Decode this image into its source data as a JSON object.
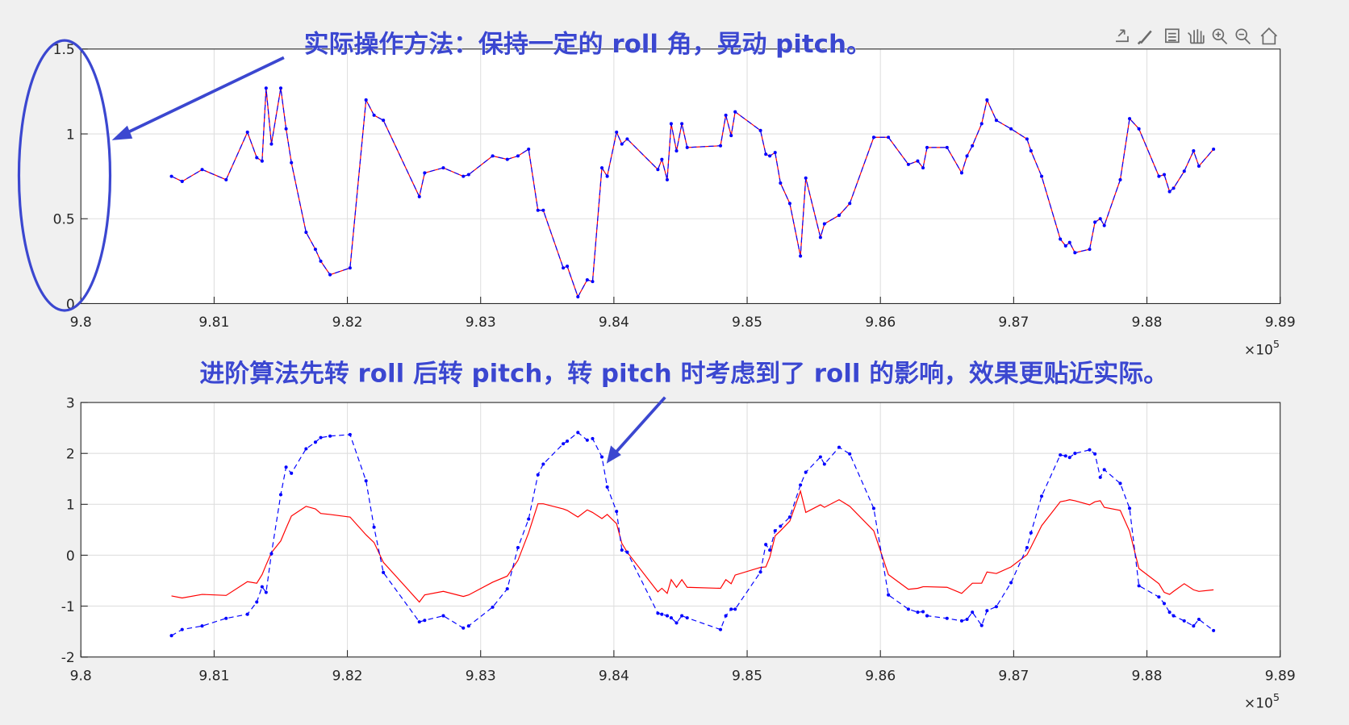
{
  "chart_data": [
    {
      "type": "line",
      "annotations": [
        "实际操作方法：保持一定的 roll 角，晃动 pitch。"
      ],
      "x_exponent_label": "×10",
      "x_exponent": "5",
      "xlim": [
        9.8,
        9.89
      ],
      "xticks": [
        9.8,
        9.81,
        9.82,
        9.83,
        9.84,
        9.85,
        9.86,
        9.87,
        9.88,
        9.89
      ],
      "ylim": [
        0,
        1.5
      ],
      "yticks": [
        0,
        0.5,
        1,
        1.5
      ],
      "grid": true,
      "x": [
        9.8068,
        9.8076,
        9.8091,
        9.8109,
        9.8125,
        9.8132,
        9.8136,
        9.8139,
        9.8143,
        9.815,
        9.8154,
        9.8158,
        9.8169,
        9.8176,
        9.818,
        9.8187,
        9.8202,
        9.8214,
        9.822,
        9.8227,
        9.8254,
        9.8258,
        9.8272,
        9.8287,
        9.8291,
        9.8309,
        9.832,
        9.8328,
        9.8336,
        9.8343,
        9.8347,
        9.8362,
        9.8365,
        9.8373,
        9.838,
        9.8384,
        9.8391,
        9.8395,
        9.8402,
        9.8406,
        9.841,
        9.8433,
        9.8436,
        9.844,
        9.8443,
        9.8447,
        9.8451,
        9.8455,
        9.848,
        9.8484,
        9.8488,
        9.8491,
        9.851,
        9.8514,
        9.8517,
        9.8521,
        9.8525,
        9.8532,
        9.854,
        9.8544,
        9.8555,
        9.8558,
        9.8569,
        9.8577,
        9.8595,
        9.8606,
        9.8621,
        9.8628,
        9.8632,
        9.8635,
        9.865,
        9.8661,
        9.8665,
        9.8669,
        9.8676,
        9.868,
        9.8687,
        9.8698,
        9.871,
        9.8713,
        9.8721,
        9.8735,
        9.8739,
        9.8742,
        9.8746,
        9.8757,
        9.8761,
        9.8765,
        9.8768,
        9.878,
        9.8787,
        9.8794,
        9.8809,
        9.8813,
        9.8817,
        9.882,
        9.8828,
        9.8835,
        9.8839,
        9.885
      ],
      "series": [
        {
          "color": "#ff0000",
          "line_style": "solid",
          "values": [
            0.75,
            0.72,
            0.79,
            0.73,
            1.01,
            0.86,
            0.84,
            1.27,
            0.94,
            1.27,
            1.03,
            0.83,
            0.42,
            0.32,
            0.25,
            0.17,
            0.21,
            1.2,
            1.11,
            1.08,
            0.63,
            0.77,
            0.8,
            0.75,
            0.76,
            0.87,
            0.85,
            0.87,
            0.91,
            0.55,
            0.55,
            0.21,
            0.22,
            0.04,
            0.14,
            0.13,
            0.8,
            0.75,
            1.01,
            0.94,
            0.97,
            0.79,
            0.85,
            0.73,
            1.06,
            0.9,
            1.06,
            0.92,
            0.93,
            1.11,
            0.99,
            1.13,
            1.02,
            0.88,
            0.87,
            0.89,
            0.71,
            0.59,
            0.28,
            0.74,
            0.39,
            0.47,
            0.52,
            0.59,
            0.98,
            0.98,
            0.82,
            0.84,
            0.8,
            0.92,
            0.92,
            0.77,
            0.87,
            0.93,
            1.06,
            1.2,
            1.08,
            1.03,
            0.97,
            0.9,
            0.75,
            0.38,
            0.34,
            0.36,
            0.3,
            0.32,
            0.48,
            0.5,
            0.46,
            0.73,
            1.09,
            1.03,
            0.75,
            0.76,
            0.66,
            0.68,
            0.78,
            0.9,
            0.81,
            0.91
          ]
        },
        {
          "color": "#0000ff",
          "line_style": "dashed",
          "marker": "dot",
          "values": [
            0.75,
            0.72,
            0.79,
            0.73,
            1.01,
            0.86,
            0.84,
            1.27,
            0.94,
            1.27,
            1.03,
            0.83,
            0.42,
            0.32,
            0.25,
            0.17,
            0.21,
            1.2,
            1.11,
            1.08,
            0.63,
            0.77,
            0.8,
            0.75,
            0.76,
            0.87,
            0.85,
            0.87,
            0.91,
            0.55,
            0.55,
            0.21,
            0.22,
            0.04,
            0.14,
            0.13,
            0.8,
            0.75,
            1.01,
            0.94,
            0.97,
            0.79,
            0.85,
            0.73,
            1.06,
            0.9,
            1.06,
            0.92,
            0.93,
            1.11,
            0.99,
            1.13,
            1.02,
            0.88,
            0.87,
            0.89,
            0.71,
            0.59,
            0.28,
            0.74,
            0.39,
            0.47,
            0.52,
            0.59,
            0.98,
            0.98,
            0.82,
            0.84,
            0.8,
            0.92,
            0.92,
            0.77,
            0.87,
            0.93,
            1.06,
            1.2,
            1.08,
            1.03,
            0.97,
            0.9,
            0.75,
            0.38,
            0.34,
            0.36,
            0.3,
            0.32,
            0.48,
            0.5,
            0.46,
            0.73,
            1.09,
            1.03,
            0.75,
            0.76,
            0.66,
            0.68,
            0.78,
            0.9,
            0.81,
            0.91
          ]
        }
      ]
    },
    {
      "type": "line",
      "annotations": [
        "进阶算法先转 roll 后转 pitch，转 pitch 时考虑到了 roll 的影响，效果更贴近实际。"
      ],
      "x_exponent_label": "×10",
      "x_exponent": "5",
      "xlim": [
        9.8,
        9.89
      ],
      "xticks": [
        9.8,
        9.81,
        9.82,
        9.83,
        9.84,
        9.85,
        9.86,
        9.87,
        9.88,
        9.89
      ],
      "ylim": [
        -2,
        3
      ],
      "yticks": [
        -2,
        -1,
        0,
        1,
        2,
        3
      ],
      "grid": true,
      "x": [
        9.8068,
        9.8076,
        9.8091,
        9.8109,
        9.8125,
        9.8132,
        9.8136,
        9.8139,
        9.8143,
        9.815,
        9.8154,
        9.8158,
        9.8169,
        9.8176,
        9.818,
        9.8187,
        9.8202,
        9.8214,
        9.822,
        9.8227,
        9.8254,
        9.8258,
        9.8272,
        9.8287,
        9.8291,
        9.8309,
        9.832,
        9.8328,
        9.8336,
        9.8343,
        9.8347,
        9.8362,
        9.8365,
        9.8373,
        9.838,
        9.8384,
        9.8391,
        9.8395,
        9.8402,
        9.8406,
        9.841,
        9.8433,
        9.8436,
        9.844,
        9.8443,
        9.8447,
        9.8451,
        9.8455,
        9.848,
        9.8484,
        9.8488,
        9.8491,
        9.851,
        9.8514,
        9.8517,
        9.8521,
        9.8525,
        9.8532,
        9.854,
        9.8544,
        9.8555,
        9.8558,
        9.8569,
        9.8577,
        9.8595,
        9.8606,
        9.8621,
        9.8628,
        9.8632,
        9.8635,
        9.865,
        9.8661,
        9.8665,
        9.8669,
        9.8676,
        9.868,
        9.8687,
        9.8698,
        9.871,
        9.8713,
        9.8721,
        9.8735,
        9.8739,
        9.8742,
        9.8746,
        9.8757,
        9.8761,
        9.8765,
        9.8768,
        9.878,
        9.8787,
        9.8794,
        9.8809,
        9.8813,
        9.8817,
        9.882,
        9.8828,
        9.8835,
        9.8839,
        9.885
      ],
      "series": [
        {
          "color": "#ff0000",
          "line_style": "solid",
          "values": [
            -0.8,
            -0.84,
            -0.77,
            -0.79,
            -0.52,
            -0.55,
            -0.38,
            -0.19,
            0.05,
            0.28,
            0.53,
            0.77,
            0.96,
            0.91,
            0.82,
            0.8,
            0.75,
            0.4,
            0.25,
            -0.14,
            -0.92,
            -0.78,
            -0.71,
            -0.81,
            -0.78,
            -0.53,
            -0.41,
            -0.1,
            0.44,
            1.01,
            1.01,
            0.91,
            0.88,
            0.75,
            0.89,
            0.84,
            0.72,
            0.8,
            0.62,
            0.23,
            0.06,
            -0.72,
            -0.65,
            -0.75,
            -0.48,
            -0.63,
            -0.48,
            -0.63,
            -0.65,
            -0.48,
            -0.56,
            -0.39,
            -0.24,
            -0.23,
            -0.04,
            0.38,
            0.48,
            0.67,
            1.26,
            0.84,
            0.99,
            0.94,
            1.09,
            0.96,
            0.48,
            -0.38,
            -0.67,
            -0.65,
            -0.62,
            -0.62,
            -0.63,
            -0.75,
            -0.65,
            -0.55,
            -0.55,
            -0.33,
            -0.36,
            -0.23,
            0.01,
            0.16,
            0.58,
            1.05,
            1.07,
            1.09,
            1.07,
            0.99,
            1.05,
            1.07,
            0.94,
            0.88,
            0.47,
            -0.26,
            -0.56,
            -0.73,
            -0.77,
            -0.71,
            -0.56,
            -0.68,
            -0.71,
            -0.68
          ]
        },
        {
          "color": "#0000ff",
          "line_style": "dashed",
          "marker": "dot",
          "values": [
            -1.58,
            -1.46,
            -1.39,
            -1.24,
            -1.16,
            -0.92,
            -0.62,
            -0.73,
            0.03,
            1.19,
            1.73,
            1.61,
            2.09,
            2.22,
            2.31,
            2.34,
            2.37,
            1.46,
            0.55,
            -0.34,
            -1.31,
            -1.28,
            -1.19,
            -1.43,
            -1.39,
            -1.02,
            -0.66,
            0.15,
            0.71,
            1.58,
            1.79,
            2.19,
            2.24,
            2.41,
            2.26,
            2.29,
            1.93,
            1.34,
            0.86,
            0.1,
            0.06,
            -1.14,
            -1.16,
            -1.19,
            -1.23,
            -1.33,
            -1.19,
            -1.23,
            -1.46,
            -1.19,
            -1.06,
            -1.06,
            -0.33,
            0.21,
            0.1,
            0.48,
            0.57,
            0.75,
            1.38,
            1.63,
            1.93,
            1.79,
            2.12,
            1.99,
            0.92,
            -0.78,
            -1.06,
            -1.12,
            -1.11,
            -1.19,
            -1.24,
            -1.29,
            -1.26,
            -1.12,
            -1.38,
            -1.09,
            -1.01,
            -0.54,
            0.15,
            0.44,
            1.16,
            1.97,
            1.95,
            1.92,
            2.0,
            2.07,
            1.99,
            1.53,
            1.68,
            1.41,
            0.92,
            -0.6,
            -0.82,
            -0.95,
            -1.12,
            -1.19,
            -1.29,
            -1.39,
            -1.26,
            -1.48
          ]
        }
      ]
    }
  ]
}
